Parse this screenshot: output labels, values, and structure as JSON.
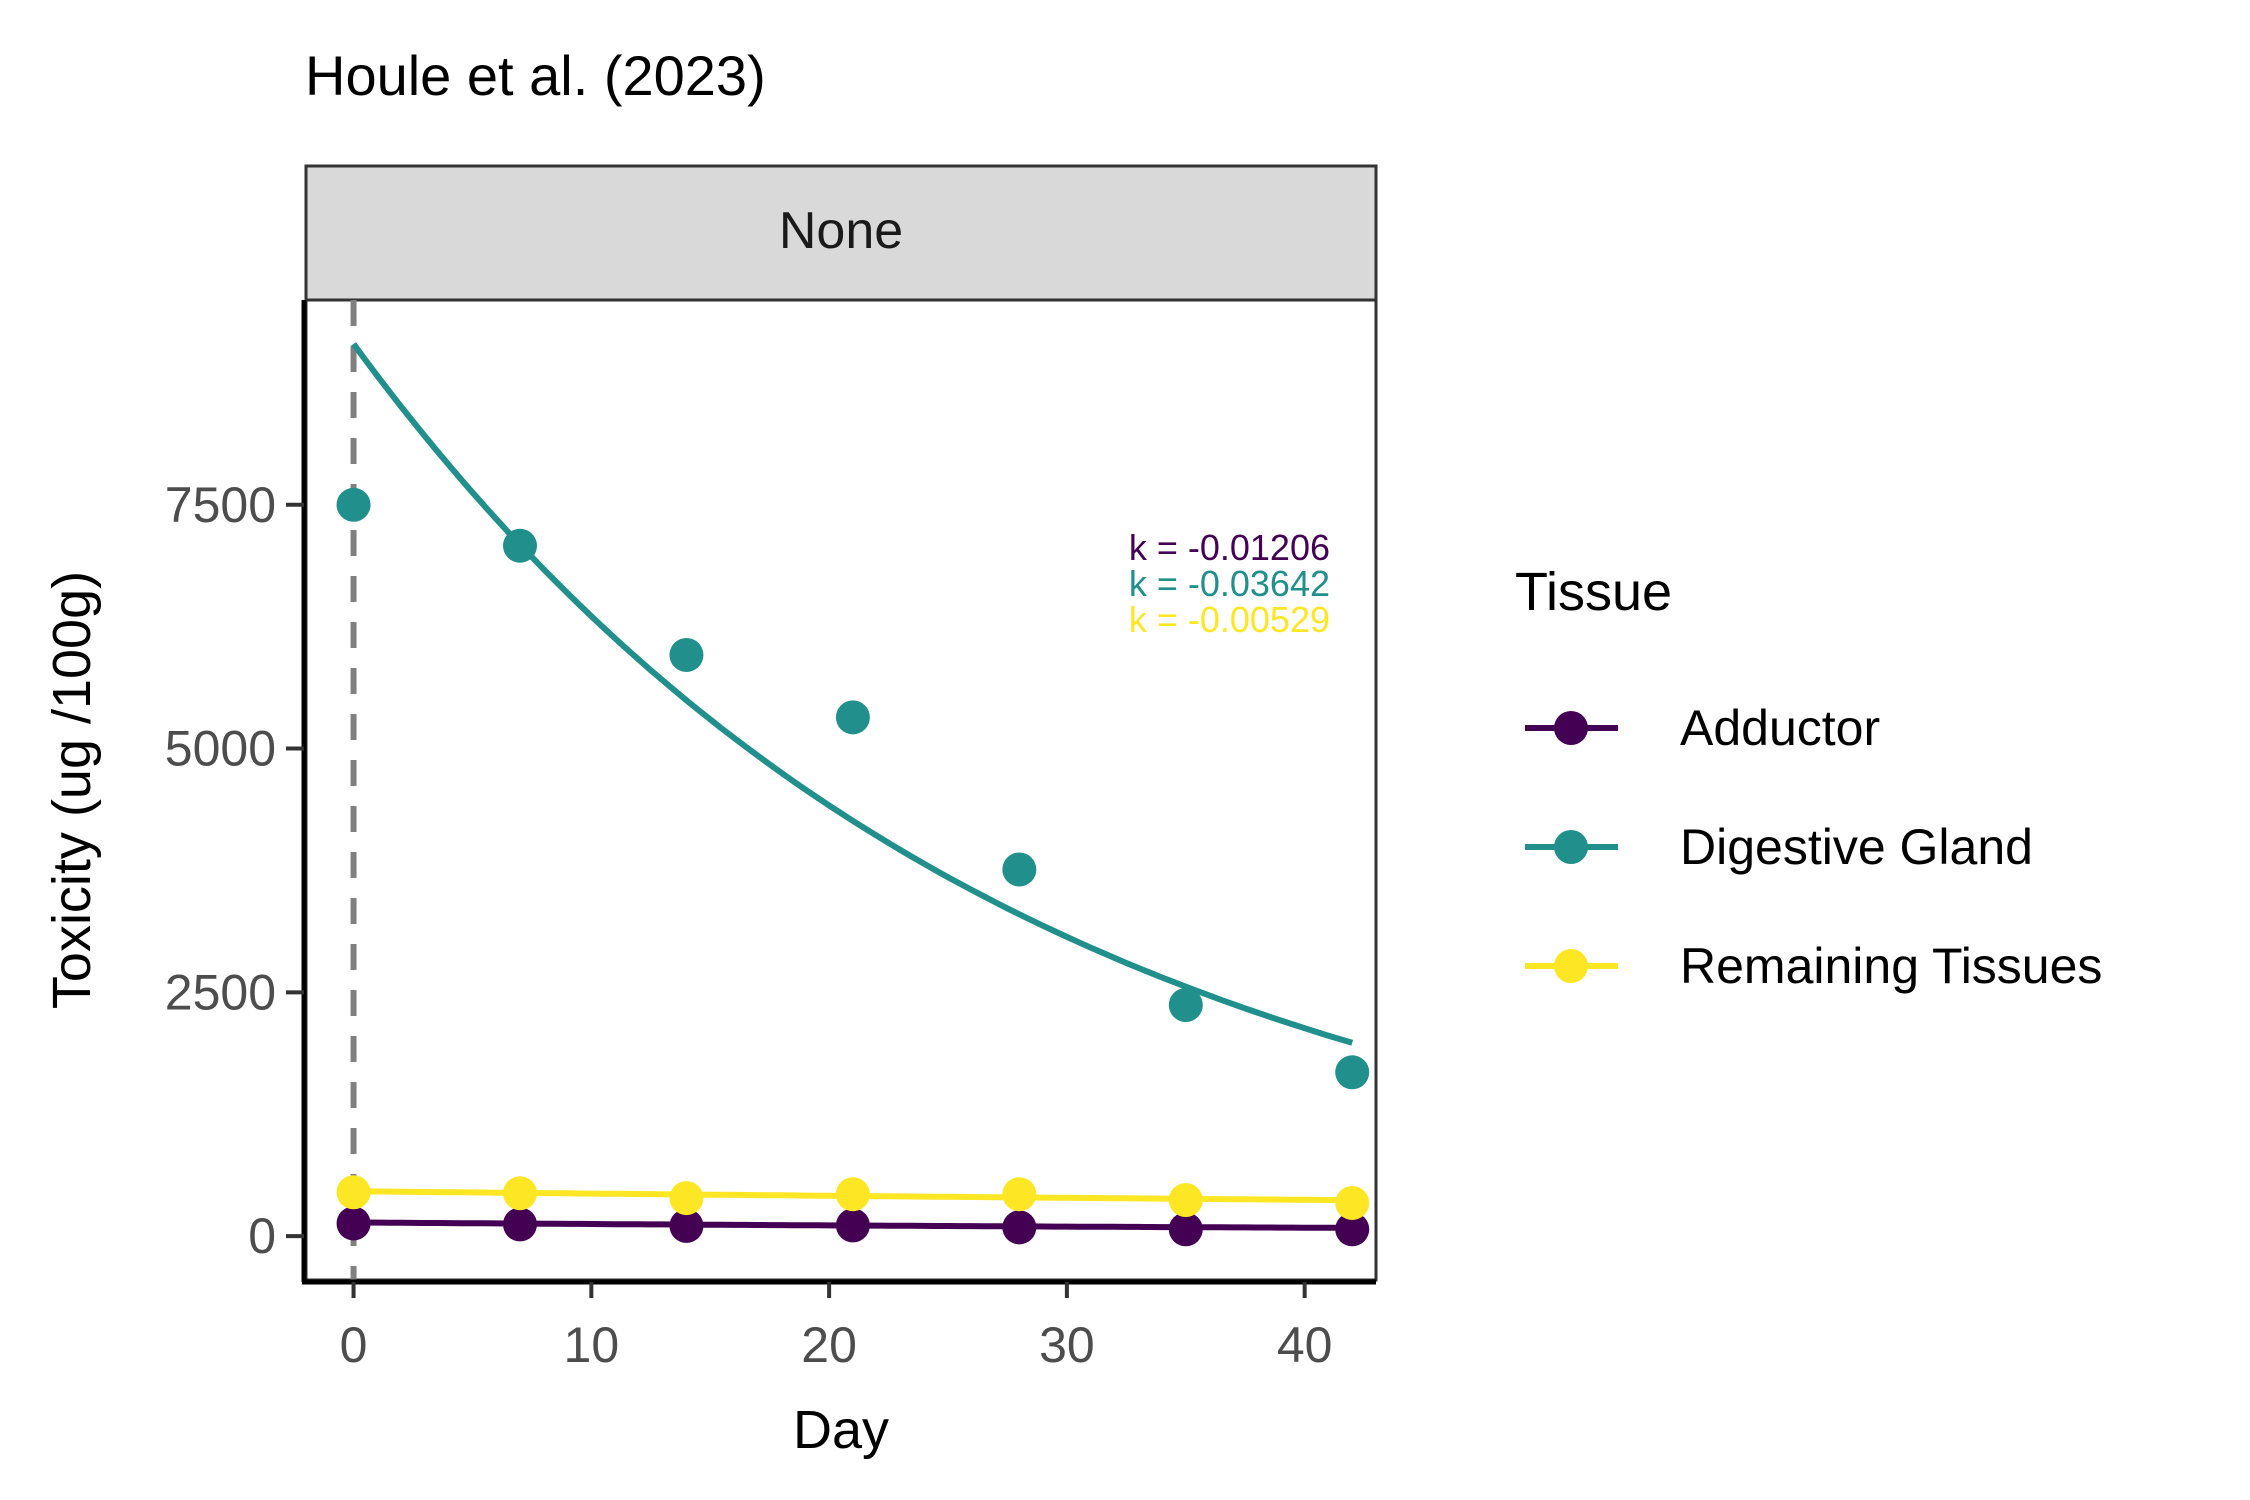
{
  "chart_data": {
    "type": "line",
    "title": "Houle et al. (2023)",
    "facet_label": "None",
    "xlabel": "Day",
    "ylabel": "Toxicity (ug /100g)",
    "xlim": [
      -2,
      43
    ],
    "ylim": [
      -450,
      9600
    ],
    "x_ticks": [
      0,
      10,
      20,
      30,
      40
    ],
    "y_ticks": [
      0,
      2500,
      5000,
      7500
    ],
    "vline_x": 0,
    "x": [
      0,
      7,
      14,
      21,
      28,
      35,
      42
    ],
    "legend": {
      "title": "Tissue",
      "position": "right"
    },
    "series": [
      {
        "name": "Adductor",
        "color": "#440154",
        "values": [
          130,
          120,
          105,
          110,
          90,
          70,
          70
        ],
        "fit": {
          "start": 140,
          "k": -0.01206
        },
        "k_label": "k = -0.01206"
      },
      {
        "name": "Digestive Gland",
        "color": "#21908C",
        "values": [
          7500,
          7080,
          5960,
          5320,
          3760,
          2370,
          1680
        ],
        "fit": {
          "start": 9150,
          "k": -0.03642
        },
        "k_label": "k = -0.03642"
      },
      {
        "name": "Remaining Tissues",
        "color": "#FDE725",
        "values": [
          450,
          440,
          390,
          430,
          430,
          370,
          340
        ],
        "fit": {
          "start": 460,
          "k": -0.00529
        },
        "k_label": "k = -0.00529"
      }
    ]
  }
}
